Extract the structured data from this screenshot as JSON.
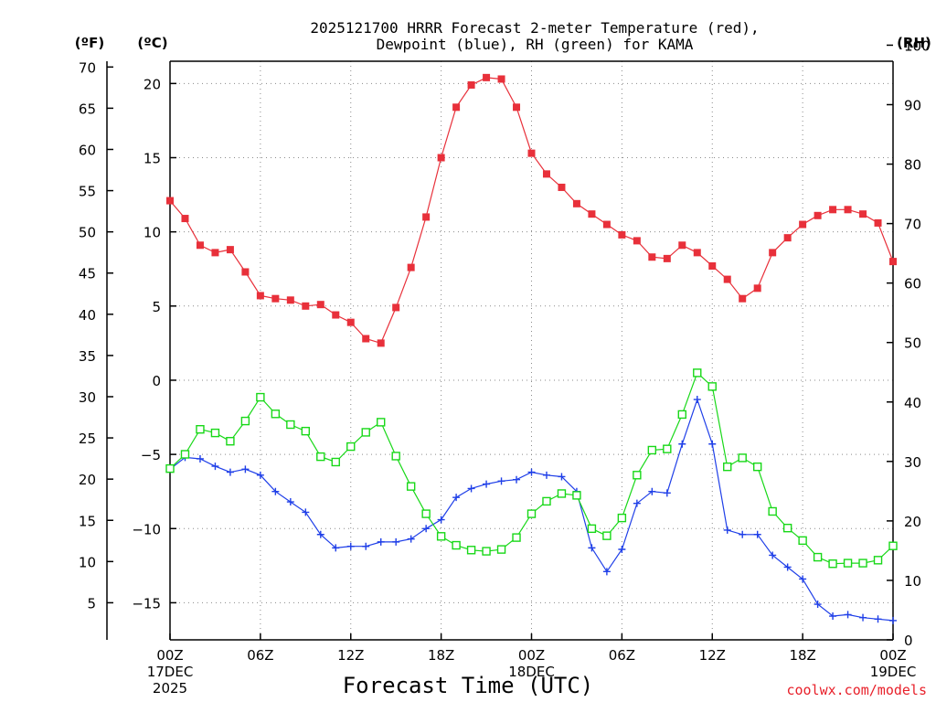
{
  "chart_data": {
    "type": "line",
    "title_line1": "2025121700 HRRR Forecast 2-meter Temperature (red),",
    "title_line2": "Dewpoint (blue), RH (green) for KAMA",
    "xlabel": "Forecast Time (UTC)",
    "credit": "coolwx.com/models",
    "unit_labels": {
      "fahrenheit": "(ºF)",
      "celsius": "(ºC)",
      "rh": "(RH)"
    },
    "x_range_hours": [
      0,
      48
    ],
    "x_ticks": [
      {
        "hour": 0,
        "label": "00Z",
        "sub1": "17DEC",
        "sub2": "2025"
      },
      {
        "hour": 6,
        "label": "06Z",
        "sub1": "",
        "sub2": ""
      },
      {
        "hour": 12,
        "label": "12Z",
        "sub1": "",
        "sub2": ""
      },
      {
        "hour": 18,
        "label": "18Z",
        "sub1": "",
        "sub2": ""
      },
      {
        "hour": 24,
        "label": "00Z",
        "sub1": "18DEC",
        "sub2": ""
      },
      {
        "hour": 30,
        "label": "06Z",
        "sub1": "",
        "sub2": ""
      },
      {
        "hour": 36,
        "label": "12Z",
        "sub1": "",
        "sub2": ""
      },
      {
        "hour": 42,
        "label": "18Z",
        "sub1": "",
        "sub2": ""
      },
      {
        "hour": 48,
        "label": "00Z",
        "sub1": "19DEC",
        "sub2": ""
      }
    ],
    "celsius_axis": {
      "range": [
        -17.5,
        21.5
      ],
      "ticks": [
        20,
        15,
        10,
        5,
        0,
        -5,
        -10,
        -15
      ],
      "tick_labels": [
        "20",
        "15",
        "10",
        "5",
        "0",
        "−5",
        "−10",
        "−15"
      ]
    },
    "fahrenheit_axis": {
      "range": [
        0.5,
        70.7
      ],
      "ticks": [
        70,
        65,
        60,
        55,
        50,
        45,
        40,
        35,
        30,
        25,
        20,
        15,
        10,
        5
      ],
      "tick_labels": [
        "70",
        "65",
        "60",
        "55",
        "50",
        "45",
        "40",
        "35",
        "30",
        "25",
        "20",
        "15",
        "10",
        "5"
      ]
    },
    "rh_axis": {
      "range": [
        0,
        97.3
      ],
      "ticks": [
        100,
        90,
        80,
        70,
        60,
        50,
        40,
        30,
        20,
        10,
        0
      ],
      "tick_labels": [
        "100",
        "90",
        "80",
        "70",
        "60",
        "50",
        "40",
        "30",
        "20",
        "10",
        "0"
      ]
    },
    "series": [
      {
        "name": "Temperature",
        "axis": "celsius",
        "color": "#e8303a",
        "marker": "filled-square",
        "x": [
          0,
          1,
          2,
          3,
          4,
          5,
          6,
          7,
          8,
          9,
          10,
          11,
          12,
          13,
          14,
          15,
          16,
          17,
          18,
          19,
          20,
          21,
          22,
          23,
          24,
          25,
          26,
          27,
          28,
          29,
          30,
          31,
          32,
          33,
          34,
          35,
          36,
          37,
          38,
          39,
          40,
          41,
          42,
          43,
          44,
          45,
          46,
          47,
          48
        ],
        "values": [
          12.1,
          10.9,
          9.1,
          8.6,
          8.8,
          7.3,
          5.7,
          5.5,
          5.4,
          5.0,
          5.1,
          4.4,
          3.9,
          2.8,
          2.5,
          4.9,
          7.6,
          11.0,
          15.0,
          18.4,
          19.9,
          20.4,
          20.3,
          18.4,
          15.3,
          13.9,
          13.0,
          11.9,
          11.2,
          10.5,
          9.8,
          9.4,
          8.3,
          8.2,
          9.1,
          8.6,
          7.7,
          6.8,
          5.5,
          6.2,
          8.6,
          9.6,
          10.5,
          11.1,
          11.5,
          11.5,
          11.2,
          10.6,
          8.0
        ]
      },
      {
        "name": "Dewpoint",
        "axis": "celsius",
        "color": "#1f3fe8",
        "marker": "plus",
        "x": [
          0,
          1,
          2,
          3,
          4,
          5,
          6,
          7,
          8,
          9,
          10,
          11,
          12,
          13,
          14,
          15,
          16,
          17,
          18,
          19,
          20,
          21,
          22,
          23,
          24,
          25,
          26,
          27,
          28,
          29,
          30,
          31,
          32,
          33,
          34,
          35,
          36,
          37,
          38,
          39,
          40,
          41,
          42,
          43,
          44,
          45,
          46,
          47,
          48
        ],
        "values": [
          -6.0,
          -5.2,
          -5.3,
          -5.8,
          -6.2,
          -6.0,
          -6.4,
          -7.5,
          -8.2,
          -8.9,
          -10.4,
          -11.3,
          -11.2,
          -11.2,
          -10.9,
          -10.9,
          -10.7,
          -10.0,
          -9.4,
          -7.9,
          -7.3,
          -7.0,
          -6.8,
          -6.7,
          -6.2,
          -6.4,
          -6.5,
          -7.5,
          -11.3,
          -12.9,
          -11.4,
          -8.3,
          -7.5,
          -7.6,
          -4.3,
          -1.3,
          -4.3,
          -10.1,
          -10.4,
          -10.4,
          -11.8,
          -12.6,
          -13.4,
          -15.1,
          -15.9,
          -15.8,
          -16.0,
          -16.1,
          -16.2
        ]
      },
      {
        "name": "RH",
        "axis": "rh",
        "color": "#18d818",
        "marker": "open-square",
        "x": [
          0,
          1,
          2,
          3,
          4,
          5,
          6,
          7,
          8,
          9,
          10,
          11,
          12,
          13,
          14,
          15,
          16,
          17,
          18,
          19,
          20,
          21,
          22,
          23,
          24,
          25,
          26,
          27,
          28,
          29,
          30,
          31,
          32,
          33,
          34,
          35,
          36,
          37,
          38,
          39,
          40,
          41,
          42,
          43,
          44,
          45,
          46,
          47,
          48
        ],
        "values": [
          28.8,
          31.2,
          35.4,
          34.8,
          33.4,
          36.8,
          40.8,
          38.0,
          36.2,
          35.1,
          30.8,
          29.9,
          32.5,
          34.9,
          36.6,
          30.9,
          25.8,
          21.2,
          17.4,
          15.9,
          15.1,
          14.9,
          15.2,
          17.2,
          21.2,
          23.3,
          24.6,
          24.3,
          18.7,
          17.5,
          20.5,
          27.7,
          31.9,
          32.1,
          37.9,
          44.9,
          42.6,
          29.1,
          30.6,
          29.1,
          21.6,
          18.8,
          16.7,
          13.9,
          12.8,
          12.9,
          12.9,
          13.4,
          15.8
        ]
      }
    ]
  }
}
